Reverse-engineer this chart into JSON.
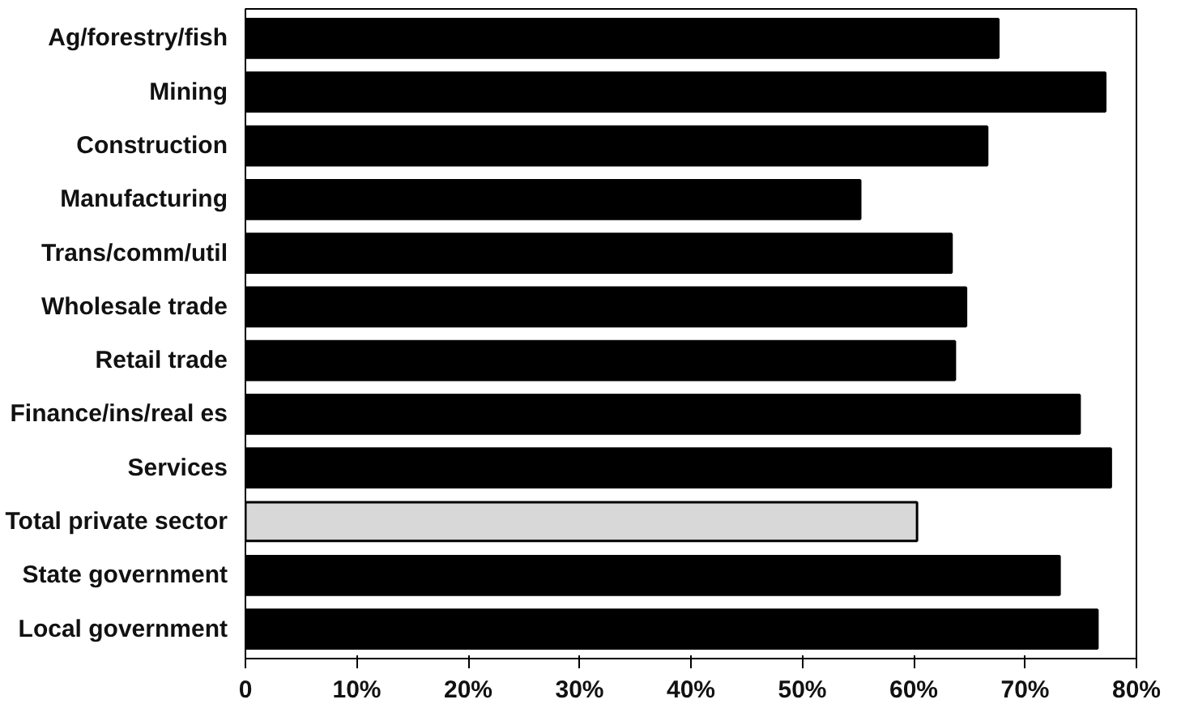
{
  "chart_data": {
    "type": "bar",
    "orientation": "horizontal",
    "categories": [
      "Ag/forestry/fish",
      "Mining",
      "Construction",
      "Manufacturing",
      "Trans/comm/util",
      "Wholesale trade",
      "Retail trade",
      "Finance/ins/real es",
      "Services",
      "Total private sector",
      "State government",
      "Local government"
    ],
    "values": [
      67.6,
      77.2,
      66.6,
      55.2,
      63.4,
      64.7,
      63.7,
      74.9,
      77.7,
      60.3,
      73.1,
      76.5
    ],
    "colors": [
      "#000000",
      "#000000",
      "#000000",
      "#000000",
      "#000000",
      "#000000",
      "#000000",
      "#000000",
      "#000000",
      "#d8d8d8",
      "#000000",
      "#000000"
    ],
    "xlim": [
      0,
      80
    ],
    "xticks": [
      {
        "value": 0,
        "label": "0"
      },
      {
        "value": 10,
        "label": "10%"
      },
      {
        "value": 20,
        "label": "20%"
      },
      {
        "value": 30,
        "label": "30%"
      },
      {
        "value": 40,
        "label": "40%"
      },
      {
        "value": 50,
        "label": "50%"
      },
      {
        "value": 60,
        "label": "60%"
      },
      {
        "value": 70,
        "label": "70%"
      },
      {
        "value": 80,
        "label": "80%"
      }
    ],
    "grid": false
  }
}
